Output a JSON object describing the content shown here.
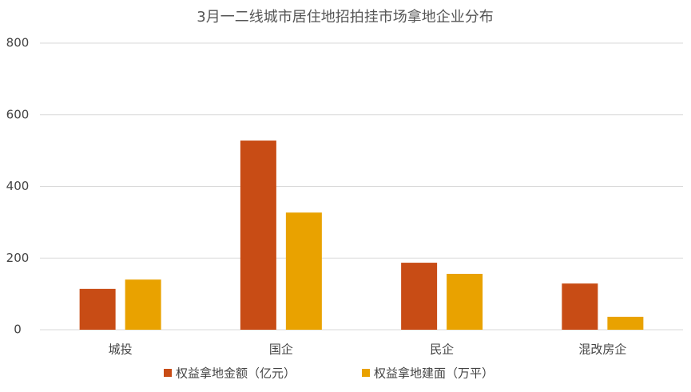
{
  "chart_data": {
    "type": "bar",
    "title": "3月一二线城市居住地招拍挂市场拿地企业分布",
    "categories": [
      "城投",
      "国企",
      "民企",
      "混改房企"
    ],
    "series": [
      {
        "name": "权益拿地金额（亿元）",
        "color": "#c84c15",
        "values": [
          114,
          528,
          187,
          129
        ]
      },
      {
        "name": "权益拿地建面（万平）",
        "color": "#e9a200",
        "values": [
          140,
          327,
          156,
          36
        ]
      }
    ],
    "ylim": [
      0,
      800
    ],
    "yticks": [
      0,
      200,
      400,
      600,
      800
    ],
    "grid": true,
    "legend": "bottom"
  }
}
